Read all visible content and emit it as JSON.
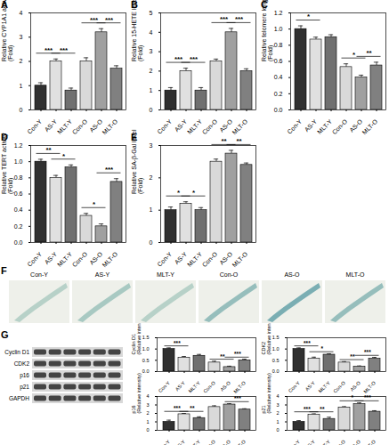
{
  "chart_data": [
    {
      "type": "bar",
      "title": "A",
      "y_label": "Relative CYP1A1 activity\n(Fold)",
      "categories": [
        "Con-Y",
        "AS-Y",
        "MLT-Y",
        "Con-O",
        "AS-O",
        "MLT-O"
      ],
      "values": [
        1.0,
        2.0,
        0.8,
        2.0,
        3.2,
        1.7
      ],
      "errors": [
        0.12,
        0.1,
        0.1,
        0.15,
        0.15,
        0.12
      ],
      "colors": [
        "#303030",
        "#e0e0e0",
        "#707070",
        "#d9d9d9",
        "#a0a0a0",
        "#808080"
      ],
      "ylim": [
        0,
        4
      ],
      "yticks": [
        0,
        1,
        2,
        3,
        4
      ],
      "annotations": [
        {
          "from": "Con-Y",
          "to": "AS-Y",
          "label": "***"
        },
        {
          "from": "AS-Y",
          "to": "MLT-Y",
          "label": "***"
        },
        {
          "from": "Con-O",
          "to": "AS-O",
          "label": "***"
        },
        {
          "from": "AS-O",
          "to": "MLT-O",
          "label": "***"
        }
      ]
    },
    {
      "type": "bar",
      "title": "B",
      "y_label": "Relative 15-HETE level\n(Fold)",
      "categories": [
        "Con-Y",
        "AS-Y",
        "MLT-Y",
        "Con-O",
        "AS-O",
        "MLT-O"
      ],
      "values": [
        1.0,
        2.0,
        1.0,
        2.5,
        4.0,
        2.0
      ],
      "errors": [
        0.15,
        0.15,
        0.15,
        0.12,
        0.2,
        0.12
      ],
      "colors": [
        "#303030",
        "#e0e0e0",
        "#707070",
        "#d9d9d9",
        "#a0a0a0",
        "#808080"
      ],
      "ylim": [
        0,
        5
      ],
      "yticks": [
        0,
        1,
        2,
        3,
        4,
        5
      ],
      "annotations": [
        {
          "from": "Con-Y",
          "to": "AS-Y",
          "label": "***"
        },
        {
          "from": "AS-Y",
          "to": "MLT-Y",
          "label": "***"
        },
        {
          "from": "Con-O",
          "to": "AS-O",
          "label": "***"
        },
        {
          "from": "AS-O",
          "to": "MLT-O",
          "label": "***"
        }
      ]
    },
    {
      "type": "bar",
      "title": "C",
      "y_label": "Relative telomere length\n(Fold)",
      "categories": [
        "Con-Y",
        "AS-Y",
        "MLT-Y",
        "Con-O",
        "AS-O",
        "MLT-O"
      ],
      "values": [
        1.0,
        0.87,
        0.9,
        0.53,
        0.4,
        0.55
      ],
      "errors": [
        0.04,
        0.03,
        0.03,
        0.04,
        0.03,
        0.04
      ],
      "colors": [
        "#303030",
        "#e0e0e0",
        "#707070",
        "#d9d9d9",
        "#a0a0a0",
        "#808080"
      ],
      "ylim": [
        0,
        1.2
      ],
      "yticks": [
        {
          "value": 0,
          "label": "0.0"
        },
        0.2,
        0.4,
        0.6,
        0.8,
        {
          "value": 1,
          "label": "1.0"
        },
        1.2
      ],
      "annotations": [
        {
          "from": "Con-Y",
          "to": "AS-Y",
          "label": "*"
        },
        {
          "from": "Con-O",
          "to": "AS-O",
          "label": "*"
        },
        {
          "from": "AS-O",
          "to": "MLT-O",
          "label": "**"
        }
      ]
    },
    {
      "type": "bar",
      "title": "D",
      "y_label": "Relative TERT activity\n(Fold)",
      "categories": [
        "Con-Y",
        "AS-Y",
        "MLT-Y",
        "Con-O",
        "AS-O",
        "MLT-O"
      ],
      "values": [
        1.0,
        0.8,
        0.93,
        0.33,
        0.2,
        0.75
      ],
      "errors": [
        0.03,
        0.03,
        0.03,
        0.03,
        0.03,
        0.04
      ],
      "colors": [
        "#303030",
        "#e0e0e0",
        "#707070",
        "#d9d9d9",
        "#a0a0a0",
        "#808080"
      ],
      "ylim": [
        0,
        1.2
      ],
      "yticks": [
        {
          "value": 0,
          "label": "0.0"
        },
        0.2,
        0.4,
        0.6,
        0.8,
        {
          "value": 1,
          "label": "1.0"
        },
        1.2
      ],
      "annotations": [
        {
          "from": "Con-Y",
          "to": "AS-Y",
          "label": "**"
        },
        {
          "from": "AS-Y",
          "to": "MLT-Y",
          "label": "*"
        },
        {
          "from": "Con-O",
          "to": "AS-O",
          "label": "*"
        },
        {
          "from": "AS-O",
          "to": "MLT-O",
          "label": "***"
        }
      ]
    },
    {
      "type": "bar",
      "title": "E",
      "y_label": "Relative SA-β-Gal level\n(Fold)",
      "categories": [
        "Con-Y",
        "AS-Y",
        "MLT-Y",
        "Con-O",
        "AS-O",
        "MLT-O"
      ],
      "values": [
        1.0,
        1.2,
        1.0,
        2.5,
        2.75,
        2.4
      ],
      "errors": [
        0.1,
        0.06,
        0.08,
        0.08,
        0.1,
        0.06
      ],
      "colors": [
        "#303030",
        "#e0e0e0",
        "#707070",
        "#d9d9d9",
        "#a0a0a0",
        "#808080"
      ],
      "ylim": [
        0,
        3
      ],
      "yticks": [
        0,
        1,
        2,
        3
      ],
      "annotations": [
        {
          "from": "Con-Y",
          "to": "AS-Y",
          "label": "*"
        },
        {
          "from": "AS-Y",
          "to": "MLT-Y",
          "label": "*"
        },
        {
          "from": "Con-O",
          "to": "AS-O",
          "label": "**"
        },
        {
          "from": "AS-O",
          "to": "MLT-O",
          "label": "**"
        }
      ]
    },
    {
      "type": "bar",
      "y_label": "Cyclin D1\n(Relative intensity)",
      "categories": [
        "Con-Y",
        "AS-Y",
        "MLT-Y",
        "Con-O",
        "AS-O",
        "MLT-O"
      ],
      "values": [
        1.0,
        0.62,
        0.7,
        0.4,
        0.2,
        0.5
      ],
      "errors": [
        0.05,
        0.05,
        0.06,
        0.06,
        0.04,
        0.05
      ],
      "colors": [
        "#303030",
        "#e0e0e0",
        "#707070",
        "#d9d9d9",
        "#a0a0a0",
        "#808080"
      ],
      "ylim": [
        0,
        1.5
      ],
      "yticks": [
        {
          "value": 0,
          "label": "0.0"
        },
        0.5,
        {
          "value": 1,
          "label": "1.0"
        },
        1.5
      ],
      "annotations": [
        {
          "from": "Con-Y",
          "to": "AS-Y",
          "label": "***"
        },
        {
          "from": "Con-O",
          "to": "AS-O",
          "label": "**"
        },
        {
          "from": "AS-O",
          "to": "MLT-O",
          "label": "***"
        }
      ]
    },
    {
      "type": "bar",
      "y_label": "CDK2\n(Relative intensity)",
      "categories": [
        "Con-Y",
        "AS-Y",
        "MLT-Y",
        "Con-O",
        "AS-O",
        "MLT-O"
      ],
      "values": [
        1.0,
        0.57,
        0.75,
        0.4,
        0.22,
        0.57
      ],
      "errors": [
        0.05,
        0.07,
        0.04,
        0.04,
        0.03,
        0.06
      ],
      "colors": [
        "#303030",
        "#e0e0e0",
        "#707070",
        "#d9d9d9",
        "#a0a0a0",
        "#808080"
      ],
      "ylim": [
        0,
        1.5
      ],
      "yticks": [
        {
          "value": 0,
          "label": "0.0"
        },
        0.5,
        {
          "value": 1,
          "label": "1.0"
        },
        1.5
      ],
      "annotations": [
        {
          "from": "Con-Y",
          "to": "AS-Y",
          "label": "***"
        },
        {
          "from": "AS-Y",
          "to": "MLT-Y",
          "label": "*"
        },
        {
          "from": "Con-O",
          "to": "AS-O",
          "label": "**"
        },
        {
          "from": "AS-O",
          "to": "MLT-O",
          "label": "***"
        }
      ]
    },
    {
      "type": "bar",
      "y_label": "p16\n(Relative intensity)",
      "categories": [
        "Con-Y",
        "AS-Y",
        "MLT-Y",
        "Con-O",
        "AS-O",
        "MLT-O"
      ],
      "values": [
        1.0,
        1.9,
        1.45,
        2.75,
        3.05,
        2.45
      ],
      "errors": [
        0.2,
        0.1,
        0.15,
        0.15,
        0.1,
        0.1
      ],
      "colors": [
        "#303030",
        "#e0e0e0",
        "#707070",
        "#d9d9d9",
        "#a0a0a0",
        "#808080"
      ],
      "ylim": [
        0,
        4
      ],
      "yticks": [
        0,
        1,
        2,
        3,
        4
      ],
      "annotations": [
        {
          "from": "Con-Y",
          "to": "AS-Y",
          "label": "***"
        },
        {
          "from": "AS-Y",
          "to": "MLT-Y",
          "label": "**"
        },
        {
          "from": "AS-O",
          "to": "MLT-O",
          "label": "***"
        }
      ]
    },
    {
      "type": "bar",
      "y_label": "p21\n(Relative intensity)",
      "categories": [
        "Con-Y",
        "AS-Y",
        "MLT-Y",
        "Con-O",
        "AS-O",
        "MLT-O"
      ],
      "values": [
        1.0,
        1.85,
        1.35,
        2.7,
        3.1,
        2.2
      ],
      "errors": [
        0.15,
        0.1,
        0.2,
        0.1,
        0.15,
        0.12
      ],
      "colors": [
        "#303030",
        "#e0e0e0",
        "#707070",
        "#d9d9d9",
        "#a0a0a0",
        "#808080"
      ],
      "ylim": [
        0,
        4
      ],
      "yticks": [
        0,
        1,
        2,
        3,
        4
      ],
      "annotations": [
        {
          "from": "Con-Y",
          "to": "AS-Y",
          "label": "***"
        },
        {
          "from": "AS-Y",
          "to": "MLT-Y",
          "label": "**"
        },
        {
          "from": "Con-O",
          "to": "AS-O",
          "label": "*"
        },
        {
          "from": "AS-O",
          "to": "MLT-O",
          "label": "***"
        }
      ]
    }
  ],
  "images": {
    "title": "F",
    "labels": [
      "Con-Y",
      "AS-Y",
      "MLT-Y",
      "Con-O",
      "AS-O",
      "MLT-O"
    ]
  },
  "blot": {
    "title": "G",
    "rows": [
      "Cyclin D1",
      "CDK2",
      "p16",
      "p21",
      "GAPDH"
    ]
  }
}
